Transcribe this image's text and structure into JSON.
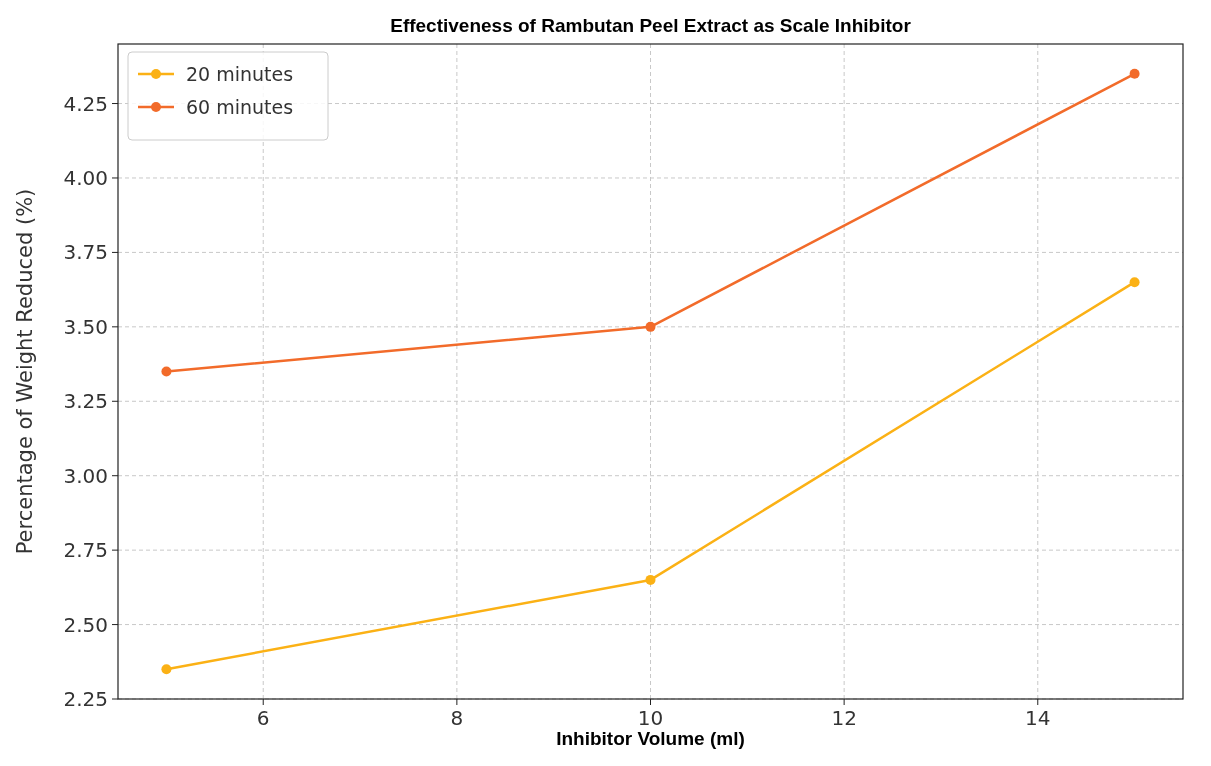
{
  "chart_data": {
    "type": "line",
    "title": "Effectiveness of Rambutan Peel Extract as Scale Inhibitor",
    "xlabel": "Inhibitor Volume (ml)",
    "ylabel": "Percentage of Weight Reduced (%)",
    "x": [
      5,
      10,
      15
    ],
    "series": [
      {
        "name": "20 minutes",
        "color": "#fbb115",
        "values": [
          2.35,
          2.65,
          3.65
        ]
      },
      {
        "name": "60 minutes",
        "color": "#f26b2a",
        "values": [
          3.35,
          3.5,
          4.35
        ]
      }
    ],
    "xlim": [
      4.5,
      15.5
    ],
    "xticks": [
      6,
      8,
      10,
      12,
      14
    ],
    "ylim": [
      2.25,
      4.45
    ],
    "yticks": [
      {
        "value": 2.25,
        "label": "2.25"
      },
      {
        "value": 2.5,
        "label": "2.50"
      },
      {
        "value": 2.75,
        "label": "2.75"
      },
      {
        "value": 3,
        "label": "3.00"
      },
      {
        "value": 3.25,
        "label": "3.25"
      },
      {
        "value": 3.5,
        "label": "3.50"
      },
      {
        "value": 3.75,
        "label": "3.75"
      },
      {
        "value": 4,
        "label": "4.00"
      },
      {
        "value": 4.25,
        "label": "4.25"
      }
    ],
    "grid": true,
    "legend": "top left",
    "marker": "circle",
    "line_style": "solid"
  }
}
